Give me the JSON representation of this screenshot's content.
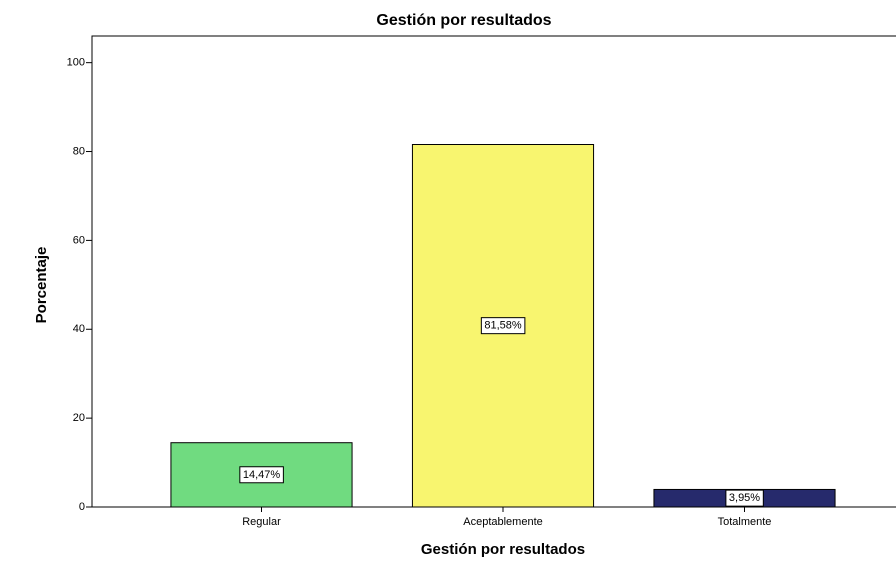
{
  "chart_data": {
    "type": "bar",
    "title": "Gestión por resultados",
    "x_label": "Gestión por resultados",
    "y_label": "Porcentaje",
    "categories": [
      "Regular",
      "Aceptablemente",
      "Totalmente"
    ],
    "values": [
      14.47,
      81.58,
      3.95
    ],
    "value_labels": [
      "14,47%",
      "81,58%",
      "3,95%"
    ],
    "colors": [
      "#70db80",
      "#f8f56f",
      "#262a6c"
    ],
    "ylim": [
      0,
      106
    ],
    "yticks": [
      0,
      20,
      40,
      60,
      80,
      100
    ]
  }
}
